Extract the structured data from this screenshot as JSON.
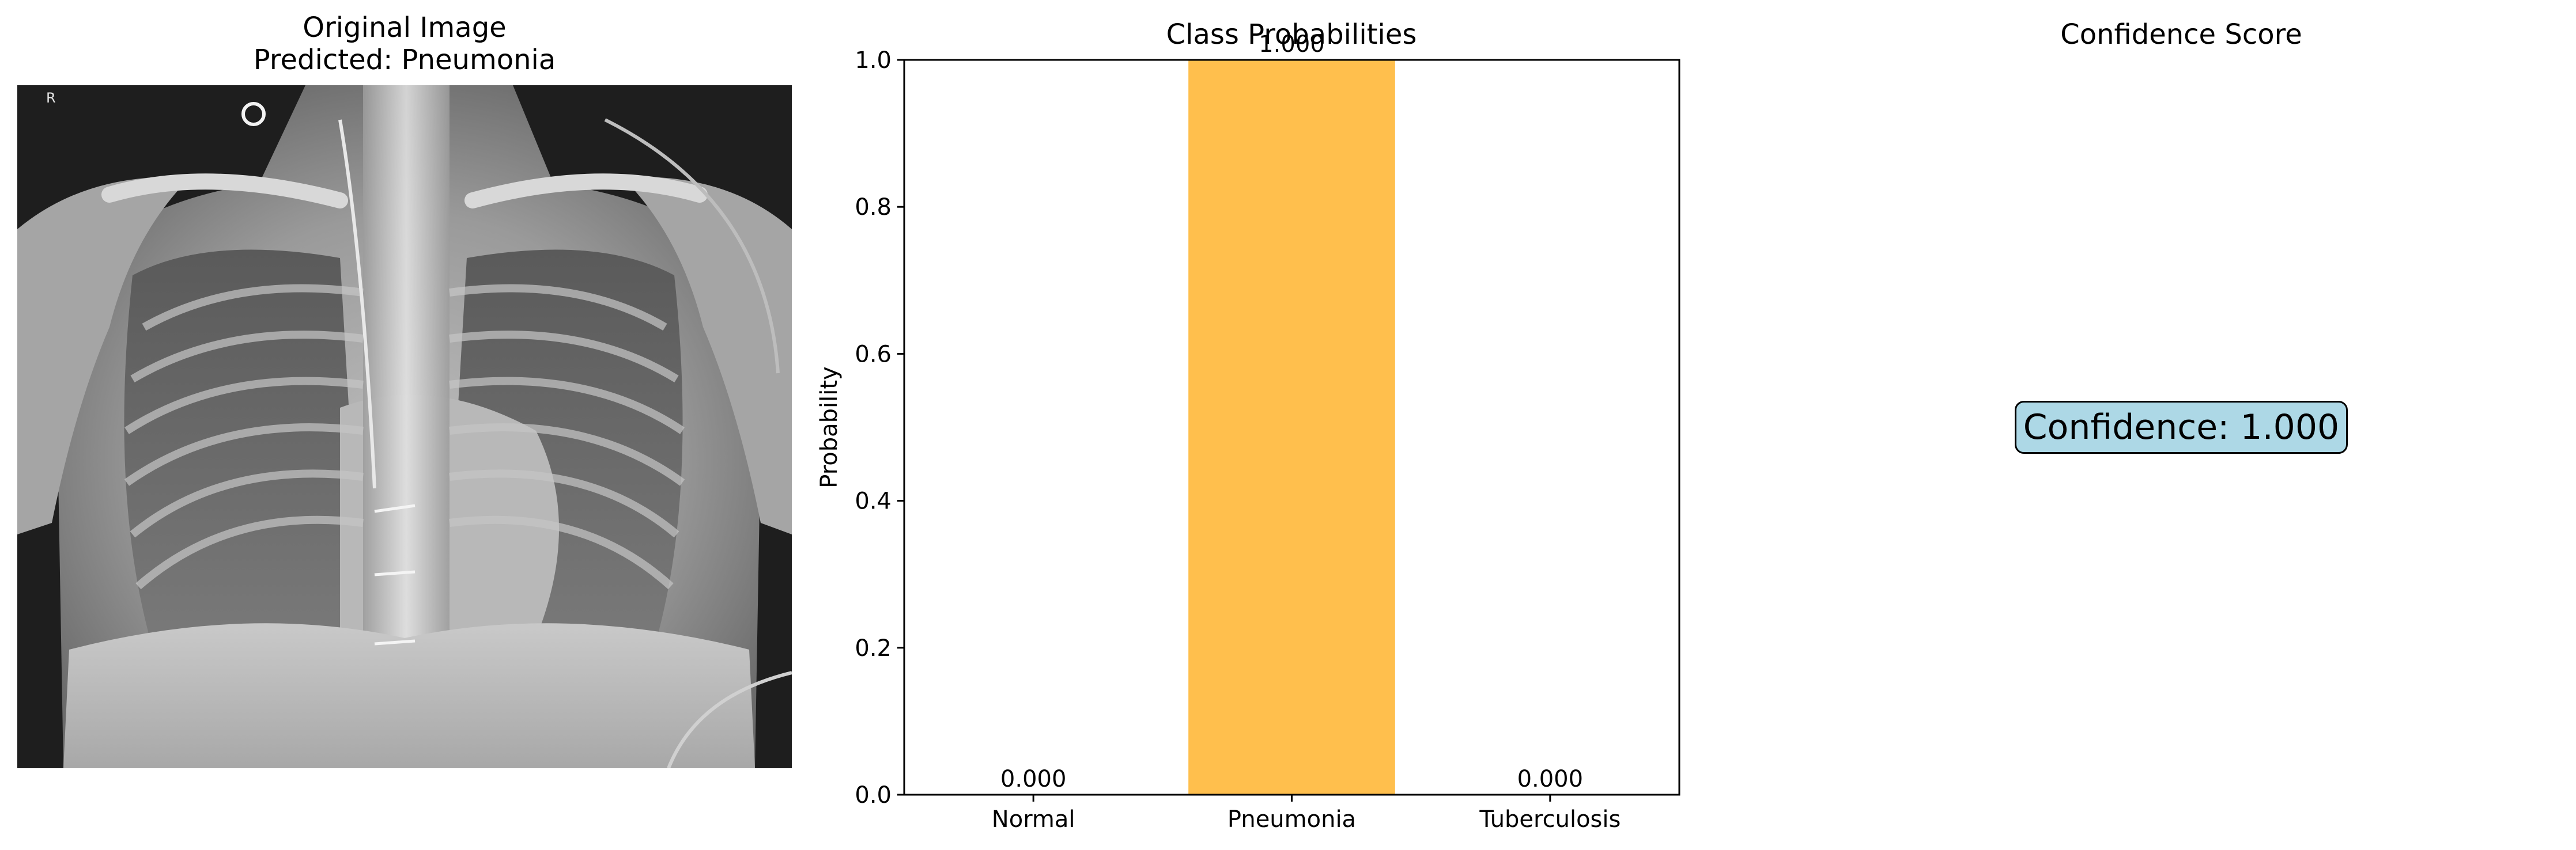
{
  "image_panel": {
    "title_line1": "Original Image",
    "title_line2": "Predicted: Pneumonia",
    "marker": "R"
  },
  "chart_data": {
    "type": "bar",
    "title": "Class Probabilities",
    "xlabel": "",
    "ylabel": "Probability",
    "categories": [
      "Normal",
      "Pneumonia",
      "Tuberculosis"
    ],
    "values": [
      0.0,
      1.0,
      0.0
    ],
    "value_labels": [
      "0.000",
      "1.000",
      "0.000"
    ],
    "ylim": [
      0,
      1
    ],
    "yticks": [
      "0.0",
      "0.2",
      "0.4",
      "0.6",
      "0.8",
      "1.0"
    ],
    "bar_color": "#ffbf4d",
    "grid": false
  },
  "confidence_panel": {
    "title": "Confidence Score",
    "text": "Confidence: 1.000",
    "box_color": "#add8e6"
  }
}
